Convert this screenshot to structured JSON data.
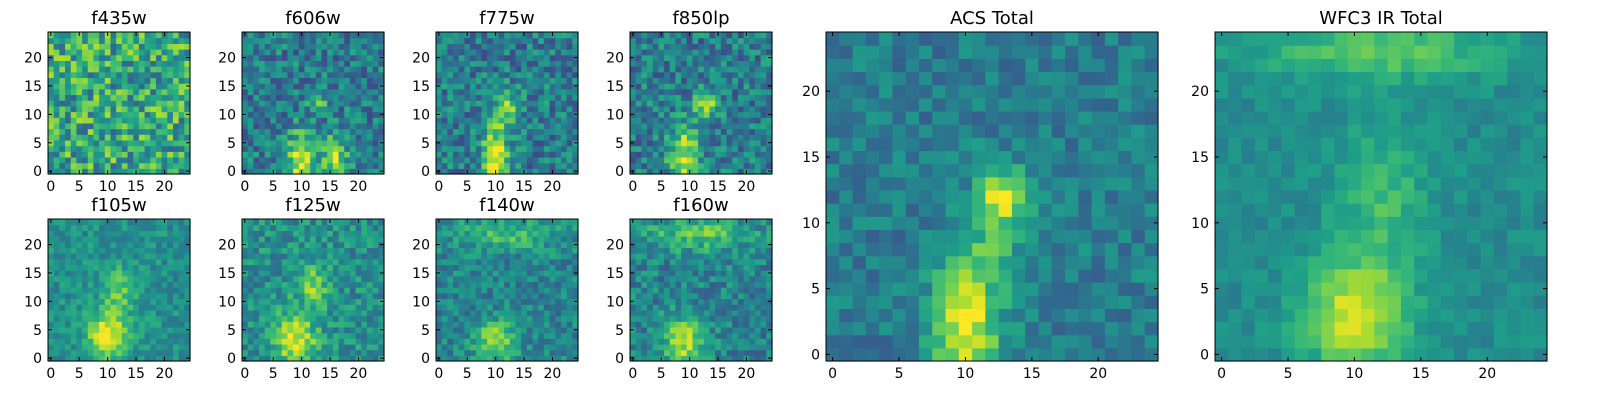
{
  "figure": {
    "background": "#ffffff",
    "colormap": "viridis",
    "colormap_stops": [
      "#440154",
      "#482878",
      "#3e4989",
      "#31688e",
      "#26828e",
      "#1f9e89",
      "#35b779",
      "#6ece58",
      "#b5de2b",
      "#fde725"
    ]
  },
  "chart_data": [
    {
      "type": "heatmap",
      "title": "f435w",
      "grid_size": 25,
      "x_ticks": [
        "0",
        "5",
        "10",
        "15",
        "20"
      ],
      "y_ticks": [
        "0",
        "5",
        "10",
        "15",
        "20"
      ],
      "blobs": [],
      "base_level": 0.6,
      "noise": 0.28,
      "seed": 11
    },
    {
      "type": "heatmap",
      "title": "f606w",
      "grid_size": 25,
      "x_ticks": [
        "0",
        "5",
        "10",
        "15",
        "20"
      ],
      "y_ticks": [
        "0",
        "5",
        "10",
        "15",
        "20"
      ],
      "blobs": [
        {
          "x": 10,
          "y": 2,
          "amp": 0.55,
          "sx": 1.8,
          "sy": 3.5
        },
        {
          "x": 16,
          "y": 2,
          "amp": 0.45,
          "sx": 1.5,
          "sy": 3.0
        },
        {
          "x": 13,
          "y": 12,
          "amp": 0.3,
          "sx": 1.2,
          "sy": 1.2
        }
      ],
      "base_level": 0.42,
      "noise": 0.2,
      "seed": 23
    },
    {
      "type": "heatmap",
      "title": "f775w",
      "grid_size": 25,
      "x_ticks": [
        "0",
        "5",
        "10",
        "15",
        "20"
      ],
      "y_ticks": [
        "0",
        "5",
        "10",
        "15",
        "20"
      ],
      "blobs": [
        {
          "x": 10,
          "y": 2,
          "amp": 0.6,
          "sx": 1.6,
          "sy": 4.0
        },
        {
          "x": 12,
          "y": 11,
          "amp": 0.35,
          "sx": 1.6,
          "sy": 2.5
        }
      ],
      "base_level": 0.42,
      "noise": 0.2,
      "seed": 37
    },
    {
      "type": "heatmap",
      "title": "f850lp",
      "grid_size": 25,
      "x_ticks": [
        "0",
        "5",
        "10",
        "15",
        "20"
      ],
      "y_ticks": [
        "0",
        "5",
        "10",
        "15",
        "20"
      ],
      "blobs": [
        {
          "x": 9,
          "y": 3,
          "amp": 0.5,
          "sx": 1.8,
          "sy": 3.5
        },
        {
          "x": 13,
          "y": 12,
          "amp": 0.45,
          "sx": 1.5,
          "sy": 1.8
        }
      ],
      "base_level": 0.42,
      "noise": 0.2,
      "seed": 41
    },
    {
      "type": "heatmap",
      "title": "f105w",
      "grid_size": 25,
      "x_ticks": [
        "0",
        "5",
        "10",
        "15",
        "20"
      ],
      "y_ticks": [
        "0",
        "5",
        "10",
        "15",
        "20"
      ],
      "blobs": [
        {
          "x": 10,
          "y": 4,
          "amp": 0.5,
          "sx": 2.5,
          "sy": 3.0
        },
        {
          "x": 12,
          "y": 12,
          "amp": 0.25,
          "sx": 2.0,
          "sy": 3.0
        }
      ],
      "base_level": 0.5,
      "noise": 0.12,
      "seed": 53
    },
    {
      "type": "heatmap",
      "title": "f125w",
      "grid_size": 25,
      "x_ticks": [
        "0",
        "5",
        "10",
        "15",
        "20"
      ],
      "y_ticks": [
        "0",
        "5",
        "10",
        "15",
        "20"
      ],
      "blobs": [
        {
          "x": 9,
          "y": 3,
          "amp": 0.45,
          "sx": 2.5,
          "sy": 3.5
        },
        {
          "x": 12,
          "y": 13,
          "amp": 0.3,
          "sx": 2.0,
          "sy": 2.5
        }
      ],
      "base_level": 0.5,
      "noise": 0.16,
      "seed": 67
    },
    {
      "type": "heatmap",
      "title": "f140w",
      "grid_size": 25,
      "x_ticks": [
        "0",
        "5",
        "10",
        "15",
        "20"
      ],
      "y_ticks": [
        "0",
        "5",
        "10",
        "15",
        "20"
      ],
      "blobs": [
        {
          "x": 10,
          "y": 3,
          "amp": 0.4,
          "sx": 2.5,
          "sy": 2.5
        },
        {
          "x": 12,
          "y": 22,
          "amp": 0.25,
          "sx": 6.0,
          "sy": 2.0
        }
      ],
      "base_level": 0.45,
      "noise": 0.15,
      "seed": 71
    },
    {
      "type": "heatmap",
      "title": "f160w",
      "grid_size": 25,
      "x_ticks": [
        "0",
        "5",
        "10",
        "15",
        "20"
      ],
      "y_ticks": [
        "0",
        "5",
        "10",
        "15",
        "20"
      ],
      "blobs": [
        {
          "x": 9,
          "y": 3,
          "amp": 0.45,
          "sx": 2.5,
          "sy": 3.0
        },
        {
          "x": 12,
          "y": 22,
          "amp": 0.3,
          "sx": 6.0,
          "sy": 2.0
        }
      ],
      "base_level": 0.45,
      "noise": 0.16,
      "seed": 83
    },
    {
      "type": "heatmap",
      "title": "ACS Total",
      "grid_size": 25,
      "x_ticks": [
        "0",
        "5",
        "10",
        "15",
        "20"
      ],
      "y_ticks": [
        "0",
        "5",
        "10",
        "15",
        "20"
      ],
      "blobs": [
        {
          "x": 10,
          "y": 2,
          "amp": 0.55,
          "sx": 1.8,
          "sy": 3.5
        },
        {
          "x": 12,
          "y": 9,
          "amp": 0.2,
          "sx": 1.5,
          "sy": 3.0
        },
        {
          "x": 13,
          "y": 12,
          "amp": 0.45,
          "sx": 1.3,
          "sy": 1.5
        }
      ],
      "base_level": 0.42,
      "noise": 0.12,
      "seed": 97
    },
    {
      "type": "heatmap",
      "title": "WFC3 IR Total",
      "grid_size": 25,
      "x_ticks": [
        "0",
        "5",
        "10",
        "15",
        "20"
      ],
      "y_ticks": [
        "0",
        "5",
        "10",
        "15",
        "20"
      ],
      "blobs": [
        {
          "x": 10,
          "y": 3,
          "amp": 0.45,
          "sx": 2.8,
          "sy": 3.0
        },
        {
          "x": 12,
          "y": 12,
          "amp": 0.2,
          "sx": 2.5,
          "sy": 4.0
        },
        {
          "x": 12,
          "y": 23,
          "amp": 0.25,
          "sx": 7.0,
          "sy": 1.5
        }
      ],
      "base_level": 0.48,
      "noise": 0.07,
      "seed": 103
    }
  ]
}
